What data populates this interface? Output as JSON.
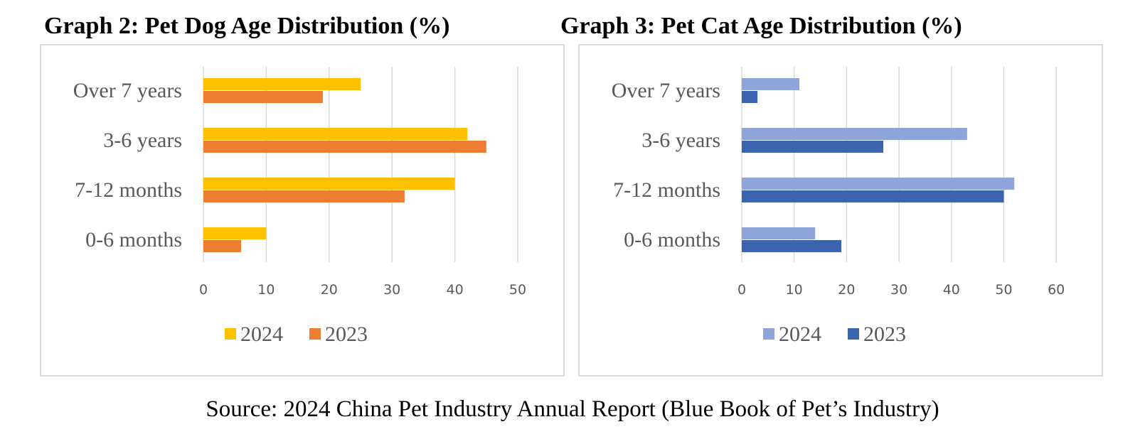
{
  "chart_data": [
    {
      "type": "bar",
      "orientation": "horizontal",
      "title": "Graph 2: Pet Dog Age Distribution (%)",
      "categories": [
        "Over 7 years",
        "3-6 years",
        "7-12 months",
        "0-6 months"
      ],
      "series": [
        {
          "name": "2024",
          "values": [
            25,
            42,
            40,
            10
          ],
          "color": "#FFC000"
        },
        {
          "name": "2023",
          "values": [
            19,
            45,
            32,
            6
          ],
          "color": "#ED7D31"
        }
      ],
      "xticks": [
        "0",
        "10",
        "20",
        "30",
        "40",
        "50"
      ],
      "xlim": [
        0,
        50
      ],
      "grid": true,
      "legend": "bottom"
    },
    {
      "type": "bar",
      "orientation": "horizontal",
      "title": "Graph 3: Pet Cat Age Distribution (%)",
      "categories": [
        "Over 7 years",
        "3-6 years",
        "7-12 months",
        "0-6 months"
      ],
      "series": [
        {
          "name": "2024",
          "values": [
            11,
            43,
            52,
            14
          ],
          "color": "#8FA5D9"
        },
        {
          "name": "2023",
          "values": [
            3,
            27,
            50,
            19
          ],
          "color": "#3C64AE"
        }
      ],
      "xticks": [
        "0",
        "10",
        "20",
        "30",
        "40",
        "50",
        "60"
      ],
      "xlim": [
        0,
        60
      ],
      "grid": true,
      "legend": "bottom"
    }
  ],
  "source": "Source: 2024 China Pet Industry Annual Report (Blue Book of Pet’s Industry)"
}
